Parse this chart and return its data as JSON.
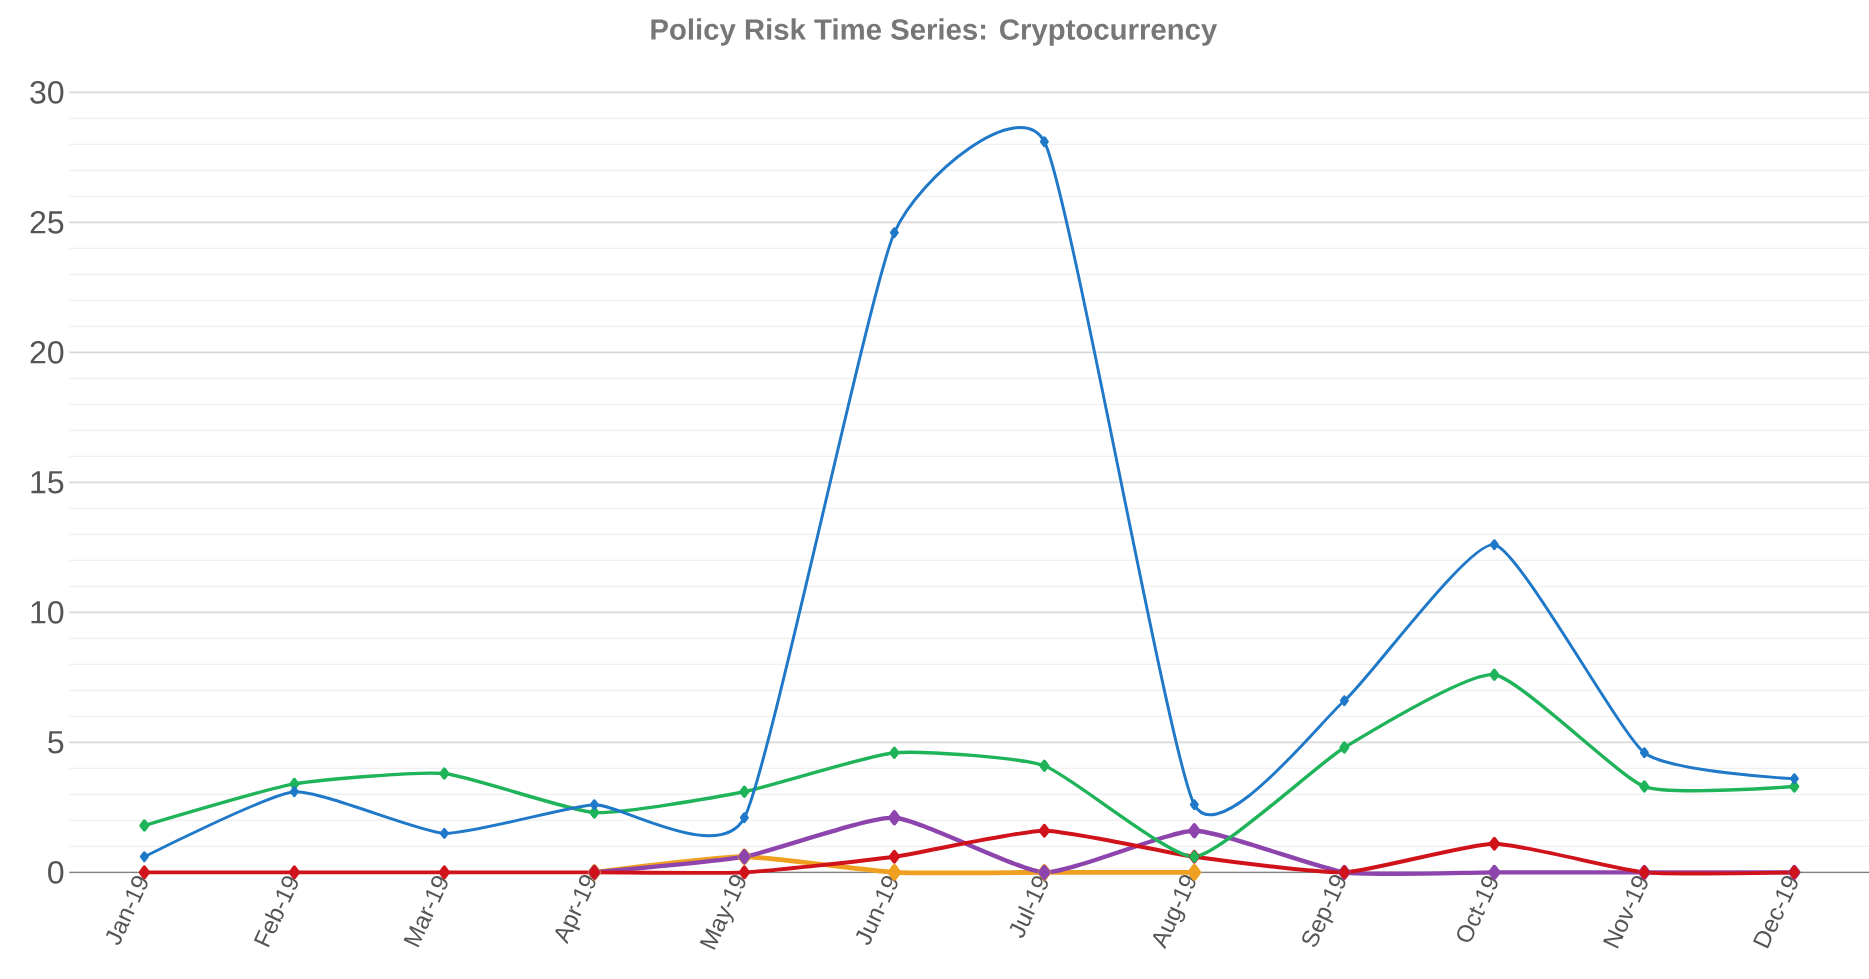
{
  "chart_data": {
    "type": "line",
    "title": "Policy Risk Time Series: Cryptocurrency",
    "categories": [
      "Jan-19",
      "Feb-19",
      "Mar-19",
      "Apr-19",
      "May-19",
      "Jun-19",
      "Jul-19",
      "Aug-19",
      "Sep-19",
      "Oct-19",
      "Nov-19",
      "Dec-19"
    ],
    "series": [
      {
        "color": "#f0a020",
        "values": [
          null,
          null,
          null,
          0,
          0.6,
          0,
          0,
          0,
          null,
          null,
          null,
          null
        ]
      },
      {
        "color": "#8e44ad",
        "values": [
          null,
          null,
          null,
          0,
          0.6,
          2.1,
          0,
          1.6,
          0,
          0,
          0,
          0
        ]
      },
      {
        "color": "#d0121b",
        "values": [
          0,
          0,
          0,
          0,
          0,
          0.6,
          1.6,
          0.6,
          0,
          1.1,
          0,
          0
        ]
      },
      {
        "color": "#1fb35a",
        "values": [
          1.8,
          3.4,
          3.8,
          2.3,
          3.1,
          4.6,
          4.1,
          0.6,
          4.8,
          7.6,
          3.3,
          3.3
        ]
      },
      {
        "color": "#1f78c8",
        "values": [
          0.6,
          3.1,
          1.5,
          2.6,
          2.1,
          24.6,
          28.1,
          2.6,
          6.6,
          12.6,
          4.6,
          3.6
        ]
      }
    ],
    "ylim": [
      0,
      30
    ],
    "yticks": [
      0,
      5,
      10,
      15,
      20,
      25,
      30
    ],
    "grid": "y",
    "marker": "diamond",
    "line_style": "solid"
  }
}
